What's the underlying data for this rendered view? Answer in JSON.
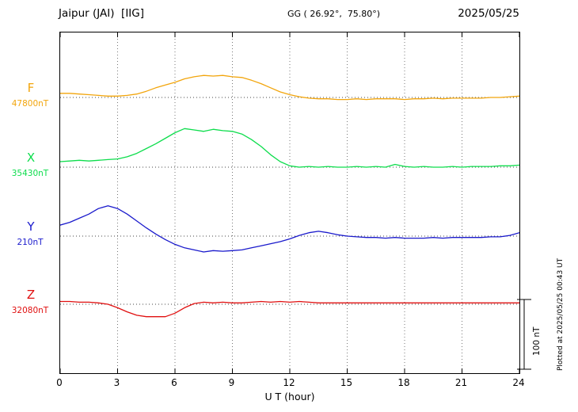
{
  "header": {
    "station": "Jaipur (JAI)  [IIG]",
    "coords": "GG ( 26.92°,  75.80°)",
    "date": "2025/05/25"
  },
  "side_note": "Plotted at 2025/05/25 00:43 UT",
  "chart_data": {
    "type": "line",
    "title": "Jaipur (JAI) [IIG] magnetogram 2025/05/25",
    "xlabel": "U T (hour)",
    "xlim": [
      0,
      24
    ],
    "x_ticks": [
      0,
      3,
      6,
      9,
      12,
      15,
      18,
      21,
      24
    ],
    "grid": "dotted vertical at 3h intervals, dotted horizontal baseline per component",
    "legend_position": "left baseline labels",
    "sample_step_hours": 0.5,
    "scale_bar": {
      "label": "100 nT",
      "nT": 100
    },
    "series": [
      {
        "name": "F",
        "baseline_label": "47800nT",
        "color": "#f2a50c",
        "values": [
          6,
          6,
          5,
          4,
          3,
          2,
          2,
          3,
          5,
          9,
          14,
          18,
          22,
          27,
          30,
          32,
          31,
          32,
          30,
          29,
          25,
          20,
          14,
          8,
          4,
          1,
          -1,
          -2,
          -2,
          -3,
          -3,
          -2,
          -3,
          -2,
          -2,
          -2,
          -3,
          -2,
          -2,
          -1,
          -2,
          -1,
          -1,
          -1,
          -1,
          0,
          0,
          1,
          2
        ]
      },
      {
        "name": "X",
        "baseline_label": "35430nT",
        "color": "#0ddd4c",
        "values": [
          8,
          9,
          10,
          9,
          10,
          11,
          12,
          15,
          20,
          27,
          34,
          42,
          50,
          56,
          54,
          52,
          55,
          53,
          52,
          48,
          40,
          30,
          18,
          8,
          2,
          0,
          1,
          0,
          1,
          0,
          0,
          1,
          0,
          1,
          0,
          4,
          1,
          0,
          1,
          0,
          0,
          1,
          0,
          1,
          1,
          1,
          2,
          2,
          3
        ]
      },
      {
        "name": "Y",
        "baseline_label": "210nT",
        "color": "#1a1acc",
        "values": [
          16,
          20,
          26,
          32,
          40,
          44,
          40,
          32,
          22,
          12,
          3,
          -5,
          -12,
          -17,
          -20,
          -23,
          -21,
          -22,
          -21,
          -20,
          -17,
          -14,
          -11,
          -8,
          -4,
          1,
          5,
          7,
          5,
          2,
          0,
          -1,
          -2,
          -2,
          -3,
          -2,
          -3,
          -3,
          -3,
          -2,
          -3,
          -2,
          -2,
          -2,
          -2,
          -1,
          -1,
          1,
          5
        ]
      },
      {
        "name": "Z",
        "baseline_label": "32080nT",
        "color": "#e01010",
        "values": [
          4,
          4,
          3,
          3,
          2,
          0,
          -5,
          -11,
          -16,
          -18,
          -18,
          -18,
          -13,
          -5,
          1,
          3,
          2,
          3,
          2,
          2,
          3,
          4,
          3,
          4,
          3,
          4,
          3,
          2,
          2,
          2,
          2,
          2,
          2,
          2,
          2,
          2,
          2,
          2,
          2,
          2,
          2,
          2,
          2,
          2,
          2,
          2,
          2,
          2,
          2
        ]
      }
    ]
  }
}
